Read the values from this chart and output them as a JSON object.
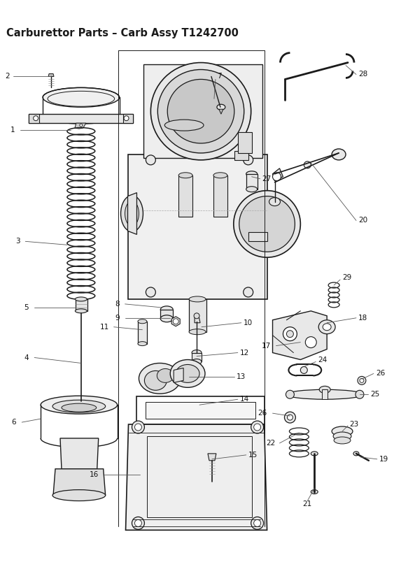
{
  "title": "Carburettor Parts – Carb Assy T1242700",
  "title_fontsize": 10.5,
  "title_fontweight": "bold",
  "background_color": "#ffffff",
  "line_color": "#1a1a1a",
  "label_color": "#1a1a1a",
  "label_fontsize": 7.5,
  "figsize": [
    5.83,
    8.24
  ],
  "dpi": 100
}
